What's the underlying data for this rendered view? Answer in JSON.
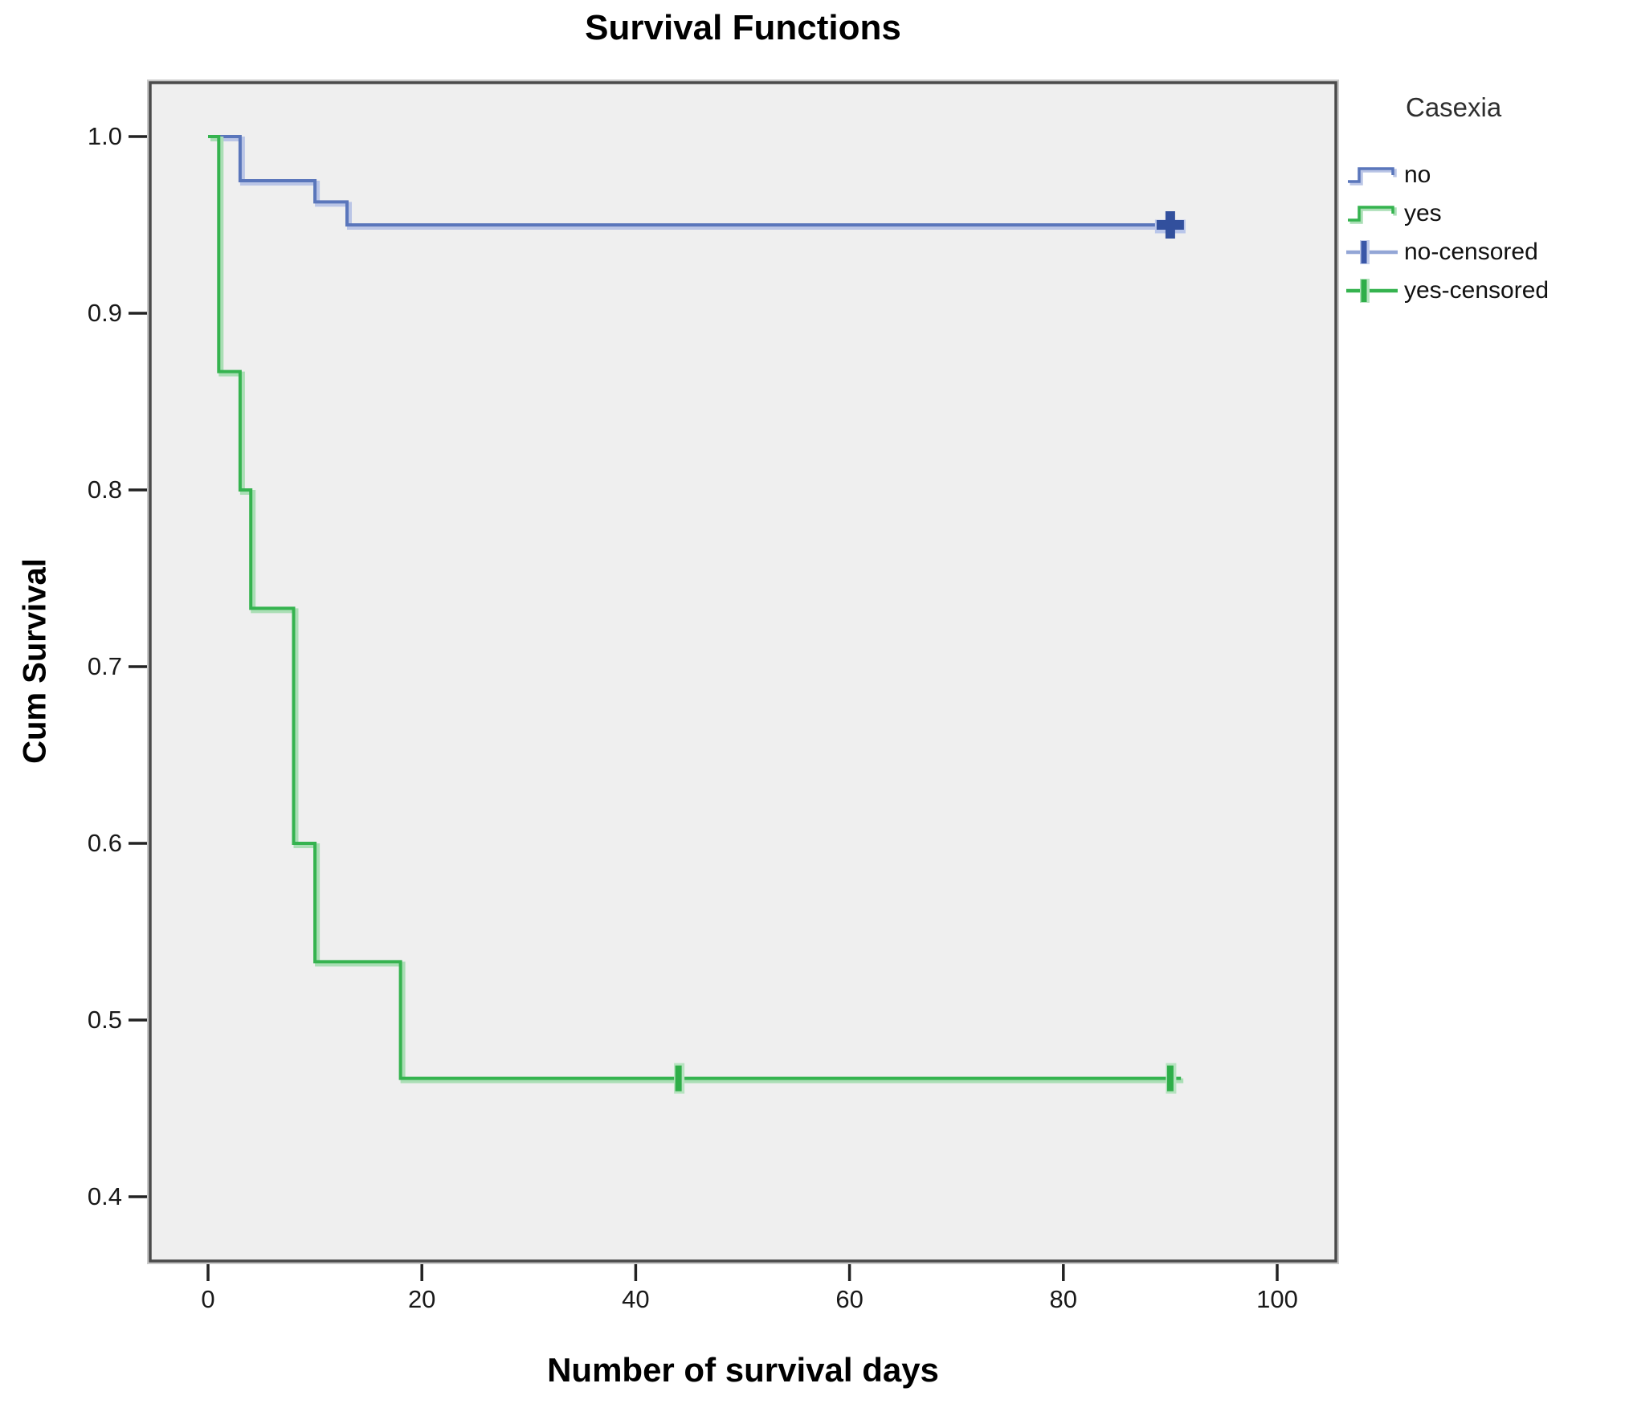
{
  "chart_data": {
    "type": "line",
    "subtype": "kaplan-meier-step",
    "title": "Survival Functions",
    "xlabel": "Number of survival days",
    "ylabel": "Cum Survival",
    "x_ticks": [
      0,
      20,
      40,
      60,
      80,
      100
    ],
    "y_ticks": [
      "1.0",
      "0.9",
      "0.8",
      "0.7",
      "0.6",
      "0.5",
      "0.4"
    ],
    "xlim": [
      -5.5,
      105.5
    ],
    "ylim": [
      0.364,
      1.03
    ],
    "grid": false,
    "legend_position": "right",
    "plot_background": "#efefef",
    "series": [
      {
        "name": "no",
        "color": "#5a76bb",
        "halo": "#bac5e6",
        "censor_color": "#32509d",
        "censor_halo": "#b9c6ea",
        "censor_style": "plus",
        "points": [
          [
            0,
            1.0
          ],
          [
            3,
            1.0
          ],
          [
            3,
            0.975
          ],
          [
            10,
            0.975
          ],
          [
            10,
            0.963
          ],
          [
            13,
            0.963
          ],
          [
            13,
            0.95
          ],
          [
            90,
            0.95
          ]
        ],
        "censored": [
          [
            90,
            0.95
          ]
        ]
      },
      {
        "name": "yes",
        "color": "#35b34f",
        "halo": "#aadeb5",
        "censor_color": "#2fae49",
        "censor_halo": "#b7e3c0",
        "censor_style": "tick",
        "points": [
          [
            0,
            1.0
          ],
          [
            1,
            1.0
          ],
          [
            1,
            0.867
          ],
          [
            3,
            0.867
          ],
          [
            3,
            0.8
          ],
          [
            4,
            0.8
          ],
          [
            4,
            0.733
          ],
          [
            8,
            0.733
          ],
          [
            8,
            0.6
          ],
          [
            10,
            0.6
          ],
          [
            10,
            0.533
          ],
          [
            18,
            0.533
          ],
          [
            18,
            0.467
          ],
          [
            91,
            0.467
          ]
        ],
        "censored": [
          [
            44,
            0.467
          ],
          [
            90,
            0.467
          ]
        ]
      }
    ]
  },
  "legend": {
    "title": "Casexia",
    "items": [
      {
        "label": "no",
        "swatch": "step",
        "color": "#5a76bb",
        "halo": "#bac5e6"
      },
      {
        "label": "yes",
        "swatch": "step",
        "color": "#35b34f",
        "halo": "#aadeb5"
      },
      {
        "label": "no-censored",
        "swatch": "censor",
        "line_color": "#93a6d6",
        "plus_color": "#3a57a8",
        "halo": "#c3cdea"
      },
      {
        "label": "yes-censored",
        "swatch": "censor",
        "line_color": "#35b34f",
        "plus_color": "#2fae49",
        "halo": "#b7e3c0"
      }
    ]
  }
}
